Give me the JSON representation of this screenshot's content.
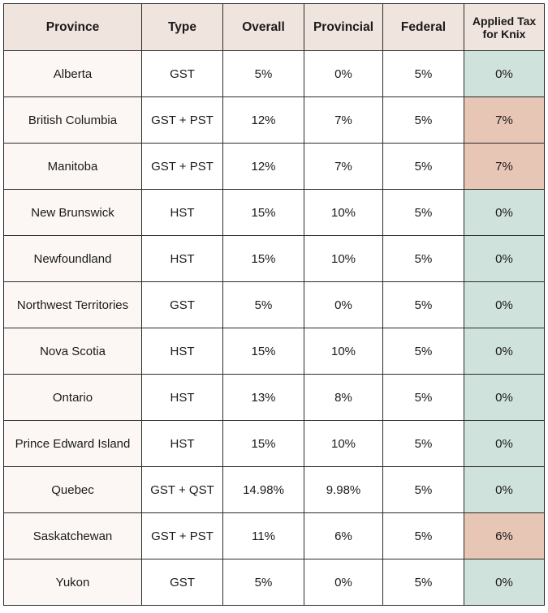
{
  "table": {
    "headers": [
      "Province",
      "Type",
      "Overall",
      "Provincial",
      "Federal",
      "Applied Tax for Knix"
    ],
    "colors": {
      "header_bg": "#f0e4de",
      "province_bg": "#fcf7f5",
      "applied_zero_bg": "#cfe2dc",
      "applied_taxed_bg": "#e8c6b5"
    },
    "rows": [
      [
        "Alberta",
        "GST",
        "5%",
        "0%",
        "5%",
        "0%"
      ],
      [
        "British Columbia",
        "GST + PST",
        "12%",
        "7%",
        "5%",
        "7%"
      ],
      [
        "Manitoba",
        "GST + PST",
        "12%",
        "7%",
        "5%",
        "7%"
      ],
      [
        "New Brunswick",
        "HST",
        "15%",
        "10%",
        "5%",
        "0%"
      ],
      [
        "Newfoundland",
        "HST",
        "15%",
        "10%",
        "5%",
        "0%"
      ],
      [
        "Northwest Territories",
        "GST",
        "5%",
        "0%",
        "5%",
        "0%"
      ],
      [
        "Nova Scotia",
        "HST",
        "15%",
        "10%",
        "5%",
        "0%"
      ],
      [
        "Ontario",
        "HST",
        "13%",
        "8%",
        "5%",
        "0%"
      ],
      [
        "Prince Edward Island",
        "HST",
        "15%",
        "10%",
        "5%",
        "0%"
      ],
      [
        "Quebec",
        "GST + QST",
        "14.98%",
        "9.98%",
        "5%",
        "0%"
      ],
      [
        "Saskatchewan",
        "GST + PST",
        "11%",
        "6%",
        "5%",
        "6%"
      ],
      [
        "Yukon",
        "GST",
        "5%",
        "0%",
        "5%",
        "0%"
      ]
    ]
  }
}
